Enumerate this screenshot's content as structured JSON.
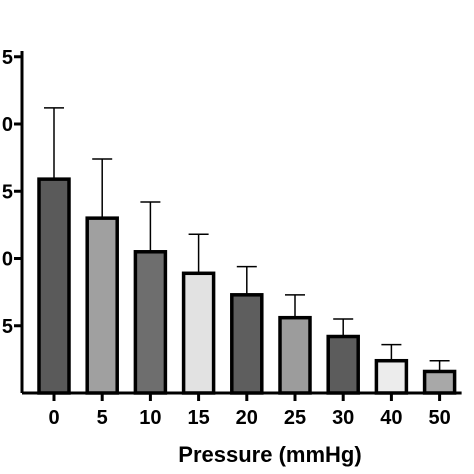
{
  "chart_data": {
    "type": "bar",
    "title": "",
    "xlabel": "Pressure (mmHg)",
    "ylabel": "",
    "categories": [
      "0",
      "5",
      "10",
      "15",
      "20",
      "25",
      "30",
      "40",
      "50"
    ],
    "values": [
      15.9,
      13.0,
      10.5,
      8.9,
      7.3,
      5.6,
      4.2,
      2.4,
      1.6
    ],
    "error": [
      5.3,
      4.4,
      3.7,
      2.9,
      2.1,
      1.7,
      1.3,
      1.2,
      0.8
    ],
    "bar_colors": [
      "#5a5a5a",
      "#a0a0a0",
      "#6e6e6e",
      "#e2e2e2",
      "#5e5e5e",
      "#9c9c9c",
      "#5c5c5c",
      "#ececec",
      "#a8a8a8"
    ],
    "ylim": [
      0,
      25
    ],
    "y_tick_labels": [
      "5",
      "0",
      "5",
      "0",
      "5"
    ],
    "grid": false
  }
}
